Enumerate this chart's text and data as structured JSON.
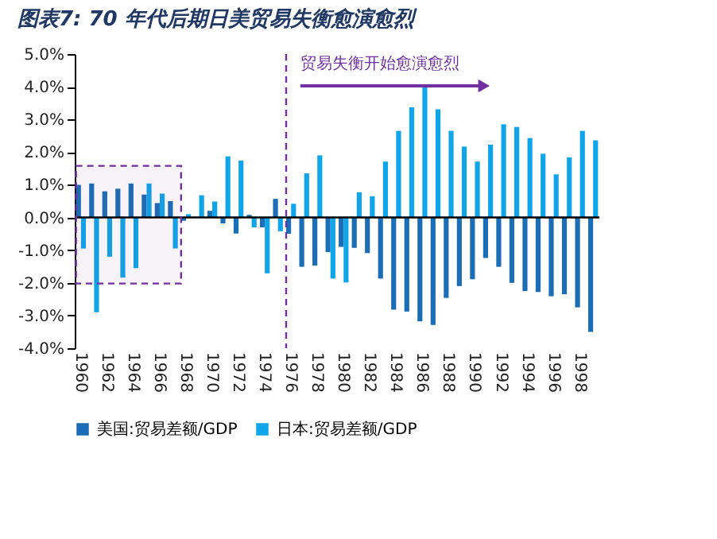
{
  "chart_data": {
    "type": "bar",
    "title": "图表7: 70 年代后期日美贸易失衡愈演愈烈",
    "categories": [
      "1960",
      null,
      "1962",
      null,
      "1964",
      null,
      "1966",
      null,
      "1968",
      null,
      "1970",
      null,
      "1972",
      null,
      "1974",
      null,
      "1976",
      null,
      "1978",
      null,
      "1980",
      null,
      "1982",
      null,
      "1984",
      null,
      "1986",
      null,
      "1988",
      null,
      "1990",
      null,
      "1992",
      null,
      "1994",
      null,
      "1996",
      null,
      "1998",
      null
    ],
    "series": [
      {
        "name": "美国:贸易差额/GDP",
        "color": "#1b6db5",
        "values": [
          1.0,
          1.04,
          0.8,
          0.88,
          1.04,
          0.7,
          0.44,
          0.5,
          -0.1,
          null,
          0.2,
          -0.18,
          -0.49,
          0.08,
          -0.3,
          0.57,
          -0.5,
          -1.51,
          -1.47,
          -1.06,
          -0.9,
          -0.93,
          -1.09,
          -1.87,
          -2.82,
          -2.88,
          -3.18,
          -3.29,
          -2.46,
          -2.1,
          -1.89,
          -1.24,
          -1.51,
          -2.0,
          -2.25,
          -2.28,
          -2.41,
          -2.35,
          -2.75,
          -3.5
        ]
      },
      {
        "name": "日本:贸易差额/GDP",
        "color": "#10a5e8",
        "values": [
          -0.95,
          -2.9,
          -1.2,
          -1.84,
          -1.55,
          1.04,
          0.73,
          -0.95,
          0.1,
          0.68,
          0.49,
          1.87,
          1.74,
          -0.3,
          -1.71,
          -0.42,
          0.42,
          1.35,
          1.9,
          -1.87,
          -1.99,
          0.77,
          0.65,
          1.71,
          2.65,
          3.37,
          4.07,
          3.31,
          2.65,
          2.17,
          1.71,
          2.23,
          2.85,
          2.77,
          2.43,
          1.95,
          1.32,
          1.84,
          2.65,
          2.36
        ]
      }
    ],
    "ylim": [
      -4,
      5
    ],
    "yticks": [
      {
        "value": -4,
        "label": "-4.0%"
      },
      {
        "value": -3,
        "label": "-3.0%"
      },
      {
        "value": -2,
        "label": "-2.0%"
      },
      {
        "value": -1,
        "label": "-1.0%"
      },
      {
        "value": 0,
        "label": "0.0%"
      },
      {
        "value": 1,
        "label": "1.0%"
      },
      {
        "value": 2,
        "label": "2.0%"
      },
      {
        "value": 3,
        "label": "3.0%"
      },
      {
        "value": 4,
        "label": "4.0%"
      },
      {
        "value": 5,
        "label": "5.0%"
      }
    ],
    "ref_lines": [
      {
        "axis": "x",
        "value": "1976",
        "label": null,
        "color": "#7030a0",
        "line_style": "dashed"
      }
    ],
    "bands": [
      {
        "axis": "x",
        "from": "1960",
        "to": "1968",
        "label": null,
        "color": "#7030a0"
      }
    ],
    "annotations": [
      "贸易失衡开始愈演愈烈"
    ],
    "legend": "bottom",
    "grid": false
  }
}
